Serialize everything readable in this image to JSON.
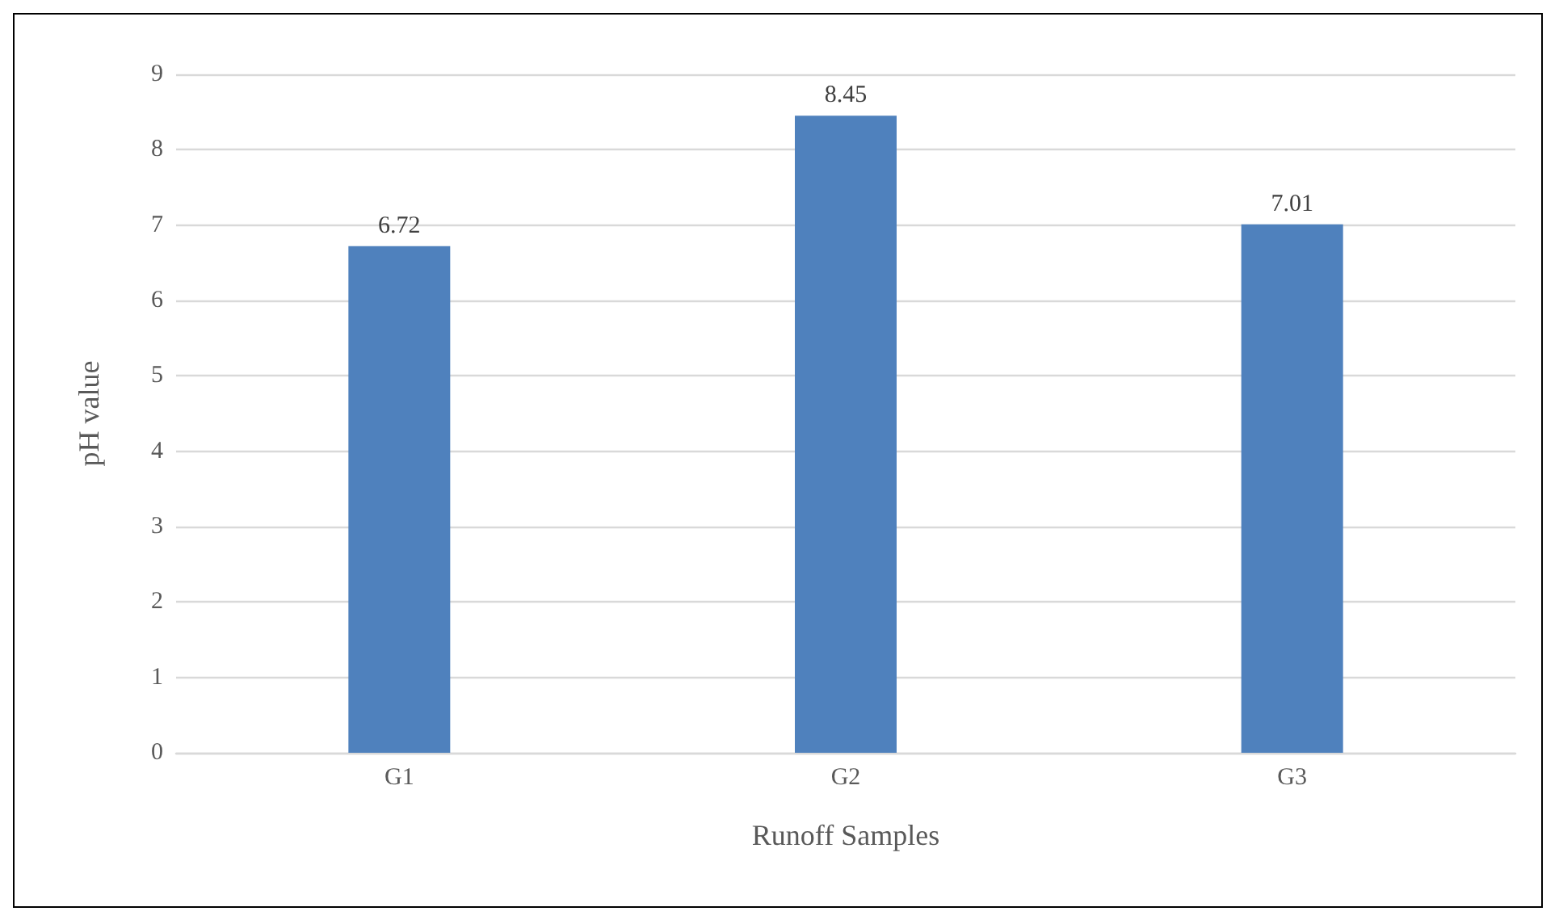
{
  "chart_data": {
    "type": "bar",
    "xlabel": "Runoff Samples",
    "ylabel": "pH value",
    "categories": [
      "G1",
      "G2",
      "G3"
    ],
    "values": [
      6.72,
      8.45,
      7.01
    ],
    "color": "#4f81bd",
    "ylim": [
      0,
      9
    ],
    "yticks": [
      0,
      1,
      2,
      3,
      4,
      5,
      6,
      7,
      8,
      9
    ],
    "grid": "y",
    "data_labels": true
  }
}
